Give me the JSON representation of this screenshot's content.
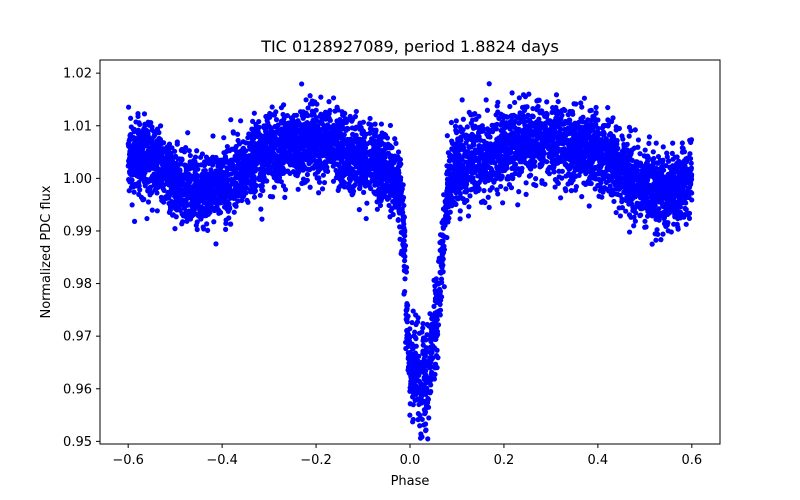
{
  "chart_data": {
    "type": "scatter",
    "title": "TIC 0128927089, period 1.8824 days",
    "xlabel": "Phase",
    "ylabel": "Normalized PDC flux",
    "xlim": [
      -0.66,
      0.66
    ],
    "ylim": [
      0.9495,
      1.0225
    ],
    "xticks": [
      -0.6,
      -0.4,
      -0.2,
      0.0,
      0.2,
      0.4,
      0.6
    ],
    "xtick_labels": [
      "−0.6",
      "−0.4",
      "−0.2",
      "0.0",
      "0.2",
      "0.4",
      "0.6"
    ],
    "yticks": [
      0.95,
      0.96,
      0.97,
      0.98,
      0.99,
      1.0,
      1.01,
      1.02
    ],
    "ytick_labels": [
      "0.95",
      "0.96",
      "0.97",
      "0.98",
      "0.99",
      "1.00",
      "1.01",
      "1.02"
    ],
    "grid": false,
    "marker_color": "#0000ff",
    "series": [
      {
        "x_range": [
          -0.6,
          0.6
        ],
        "sampled_trend": {
          "phase": [
            -0.6,
            -0.55,
            -0.5,
            -0.45,
            -0.4,
            -0.35,
            -0.3,
            -0.25,
            -0.2,
            -0.15,
            -0.1,
            -0.05,
            -0.02,
            0.0,
            0.02,
            0.04,
            0.06,
            0.08,
            0.1,
            0.15,
            0.2,
            0.25,
            0.3,
            0.35,
            0.4,
            0.45,
            0.5,
            0.55,
            0.6
          ],
          "flux": [
            1.004,
            1.004,
            0.999,
            0.997,
            0.999,
            1.002,
            1.005,
            1.006,
            1.007,
            1.005,
            1.003,
            1.002,
            0.998,
            0.964,
            0.962,
            0.963,
            0.975,
            0.998,
            1.002,
            1.004,
            1.006,
            1.007,
            1.007,
            1.006,
            1.005,
            1.002,
            0.998,
            0.997,
            1.0
          ]
        },
        "scatter_sd": 0.0035,
        "n_points": 6000
      }
    ]
  }
}
